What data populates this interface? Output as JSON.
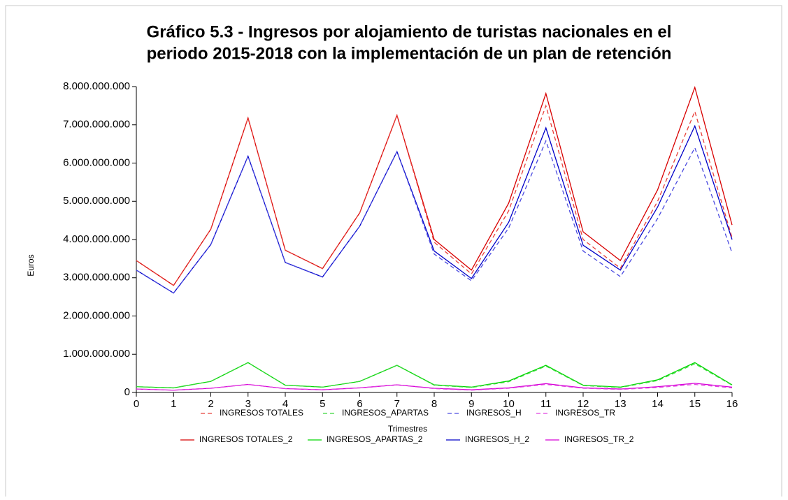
{
  "chart_data": {
    "type": "line",
    "title": [
      "Gráfico 5.3 - Ingresos por alojamiento de turistas nacionales en el",
      "periodo 2015-2018 con la implementación de un plan de retención"
    ],
    "x_label": "Trimestres",
    "y_label": "Euros",
    "x": [
      0,
      1,
      2,
      3,
      4,
      5,
      6,
      7,
      8,
      9,
      10,
      11,
      12,
      13,
      14,
      15,
      16
    ],
    "xlim": [
      0,
      16
    ],
    "xticks": [
      0,
      1,
      2,
      3,
      4,
      5,
      6,
      7,
      8,
      9,
      10,
      11,
      12,
      13,
      14,
      15,
      16
    ],
    "ylim": [
      0,
      8000000000
    ],
    "yticks": [
      0,
      {
        "value": 1000000000,
        "label": "1.000.000.000"
      },
      {
        "value": 2000000000,
        "label": "2.000.000.000"
      },
      {
        "value": 3000000000,
        "label": "3.000.000.000"
      },
      {
        "value": 4000000000,
        "label": "4.000.000.000"
      },
      {
        "value": 5000000000,
        "label": "5.000.000.000"
      },
      {
        "value": 6000000000,
        "label": "6.000.000.000"
      },
      {
        "value": 7000000000,
        "label": "7.000.000.000"
      },
      {
        "value": 8000000000,
        "label": "8.000.000.000"
      }
    ],
    "series": [
      {
        "name": "INGRESOS TOTALES",
        "color": "#e8403a",
        "style": "dashed",
        "values": [
          3450000000.0,
          2800000000.0,
          4270000000.0,
          7180000000.0,
          3720000000.0,
          3240000000.0,
          4700000000.0,
          7250000000.0,
          3930000000.0,
          3100000000.0,
          4750000000.0,
          7500000000.0,
          4000000000.0,
          3250000000.0,
          5000000000.0,
          7350000000.0,
          4050000000.0
        ]
      },
      {
        "name": "INGRESOS_APARTAS",
        "color": "#3ad83a",
        "style": "dashed",
        "values": [
          150000000.0,
          120000000.0,
          290000000.0,
          780000000.0,
          190000000.0,
          140000000.0,
          290000000.0,
          710000000.0,
          190000000.0,
          130000000.0,
          280000000.0,
          690000000.0,
          180000000.0,
          130000000.0,
          310000000.0,
          750000000.0,
          190000000.0
        ]
      },
      {
        "name": "INGRESOS_H",
        "color": "#4a4ae0",
        "style": "dashed",
        "values": [
          3200000000.0,
          2600000000.0,
          3870000000.0,
          6180000000.0,
          3400000000.0,
          3020000000.0,
          4350000000.0,
          6300000000.0,
          3620000000.0,
          2920000000.0,
          4300000000.0,
          6580000000.0,
          3700000000.0,
          3030000000.0,
          4550000000.0,
          6400000000.0,
          3650000000.0
        ]
      },
      {
        "name": "INGRESOS_TR",
        "color": "#e040e0",
        "style": "dashed",
        "values": [
          90000000.0,
          60000000.0,
          110000000.0,
          210000000.0,
          100000000.0,
          70000000.0,
          120000000.0,
          200000000.0,
          100000000.0,
          60000000.0,
          110000000.0,
          210000000.0,
          110000000.0,
          80000000.0,
          130000000.0,
          210000000.0,
          120000000.0
        ]
      },
      {
        "name": "INGRESOS TOTALES_2",
        "color": "#d80000",
        "style": "solid",
        "values": [
          3450000000.0,
          2800000000.0,
          4270000000.0,
          7180000000.0,
          3720000000.0,
          3240000000.0,
          4700000000.0,
          7250000000.0,
          4000000000.0,
          3200000000.0,
          4950000000.0,
          7820000000.0,
          4200000000.0,
          3450000000.0,
          5300000000.0,
          7980000000.0,
          4380000000.0
        ]
      },
      {
        "name": "INGRESOS_APARTAS_2",
        "color": "#00d800",
        "style": "solid",
        "values": [
          150000000.0,
          120000000.0,
          290000000.0,
          780000000.0,
          190000000.0,
          140000000.0,
          290000000.0,
          710000000.0,
          200000000.0,
          140000000.0,
          300000000.0,
          710000000.0,
          190000000.0,
          140000000.0,
          330000000.0,
          780000000.0,
          200000000.0
        ]
      },
      {
        "name": "INGRESOS_H_2",
        "color": "#0000c8",
        "style": "solid",
        "values": [
          3200000000.0,
          2600000000.0,
          3870000000.0,
          6180000000.0,
          3400000000.0,
          3020000000.0,
          4350000000.0,
          6300000000.0,
          3700000000.0,
          2980000000.0,
          4450000000.0,
          6920000000.0,
          3850000000.0,
          3200000000.0,
          4850000000.0,
          6970000000.0,
          4000000000.0
        ]
      },
      {
        "name": "INGRESOS_TR_2",
        "color": "#d800d8",
        "style": "solid",
        "values": [
          90000000.0,
          60000000.0,
          110000000.0,
          210000000.0,
          100000000.0,
          70000000.0,
          120000000.0,
          200000000.0,
          110000000.0,
          70000000.0,
          120000000.0,
          230000000.0,
          120000000.0,
          90000000.0,
          150000000.0,
          240000000.0,
          140000000.0
        ]
      }
    ]
  }
}
